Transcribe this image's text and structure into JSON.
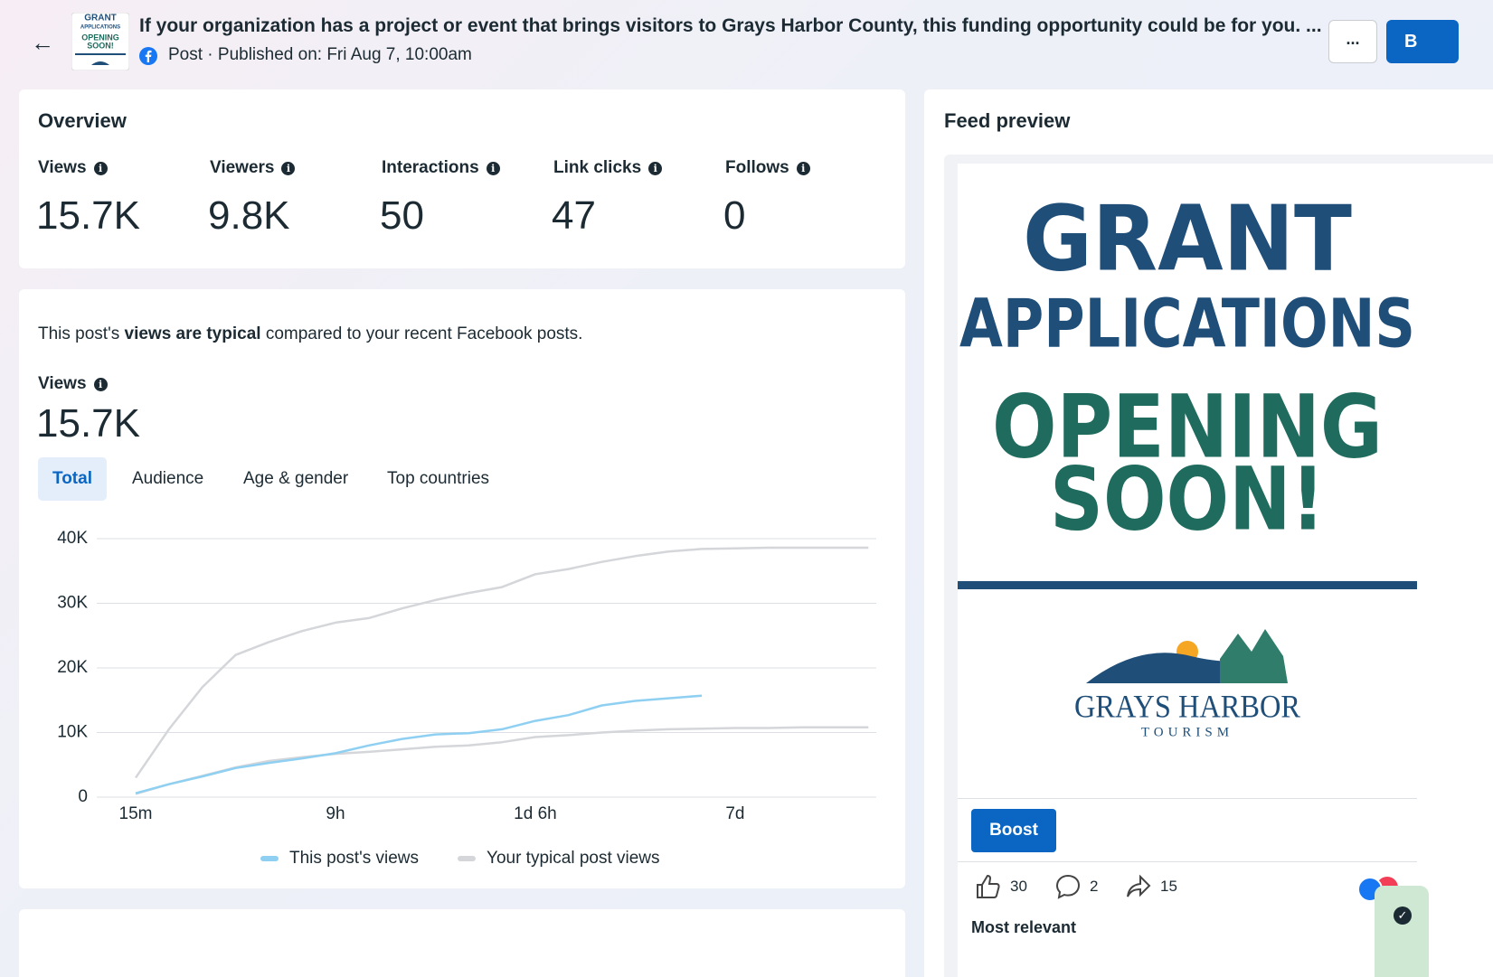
{
  "header": {
    "title": "If your organization has a project or event that brings visitors to Grays Harbor County, this funding opportunity could be for you. ...",
    "meta": "Post · Published on: Fri Aug 7, 10:00am",
    "thumbnail": [
      "GRANT",
      "APPLICATIONS",
      "OPENING",
      "SOON!"
    ],
    "more_button": "...",
    "boost_button": "B"
  },
  "overview": {
    "title": "Overview",
    "metrics": [
      {
        "label": "Views",
        "value": "15.7K"
      },
      {
        "label": "Viewers",
        "value": "9.8K"
      },
      {
        "label": "Interactions",
        "value": "50"
      },
      {
        "label": "Link clicks",
        "value": "47"
      },
      {
        "label": "Follows",
        "value": "0"
      }
    ]
  },
  "views_summary": {
    "text_before": "This post's ",
    "bold": "views are typical",
    "text_after": " compared to your recent Facebook posts.",
    "label": "Views",
    "value": "15.7K"
  },
  "tabs": [
    "Total",
    "Audience",
    "Age & gender",
    "Top countries"
  ],
  "chart_data": {
    "type": "line",
    "categories": [
      "15m",
      null,
      null,
      null,
      null,
      null,
      "9h",
      null,
      null,
      null,
      null,
      null,
      "1d 6h",
      null,
      null,
      null,
      null,
      null,
      "7d",
      null,
      null,
      null,
      null
    ],
    "series": [
      {
        "name": "This post's views",
        "color": "#8fd0f2",
        "values": [
          600,
          2000,
          3200,
          4500,
          5300,
          6000,
          6800,
          8000,
          9000,
          9700,
          9900,
          10500,
          11800,
          12700,
          14200,
          14900,
          15300,
          15700,
          null,
          null,
          null,
          null,
          null
        ]
      },
      {
        "name": "Your typical post views",
        "color": "#d4d6da",
        "values": [
          500,
          2000,
          3300,
          4600,
          5600,
          6200,
          6700,
          7000,
          7400,
          7800,
          8000,
          8500,
          9300,
          9600,
          10000,
          10300,
          10500,
          10600,
          10700,
          10700,
          10800,
          10800,
          10800
        ]
      },
      {
        "color": "#d4d6da",
        "values": [
          3000,
          10500,
          17000,
          22000,
          24000,
          25700,
          27000,
          27700,
          29200,
          30500,
          31600,
          32500,
          34500,
          35300,
          36400,
          37300,
          38000,
          38400,
          38500,
          38600,
          38600,
          38600,
          38600
        ]
      }
    ],
    "ylim": [
      0,
      40000
    ],
    "yticks": [
      0,
      {
        "value": 10000,
        "label": "10K"
      },
      {
        "value": 20000,
        "label": "20K"
      },
      {
        "value": 30000,
        "label": "30K"
      },
      {
        "value": 40000,
        "label": "40K"
      }
    ],
    "grid": true,
    "legend": "bottom"
  },
  "feed_preview": {
    "title": "Feed preview",
    "image_lines": [
      "GRANT",
      "APPLICATIONS",
      "OPENING",
      "SOON!"
    ],
    "logo": [
      "GRAYS HARBOR",
      "TOURISM"
    ],
    "boost": "Boost",
    "likes": "30",
    "comments": "2",
    "shares": "15",
    "most_relevant": "Most relevant"
  }
}
